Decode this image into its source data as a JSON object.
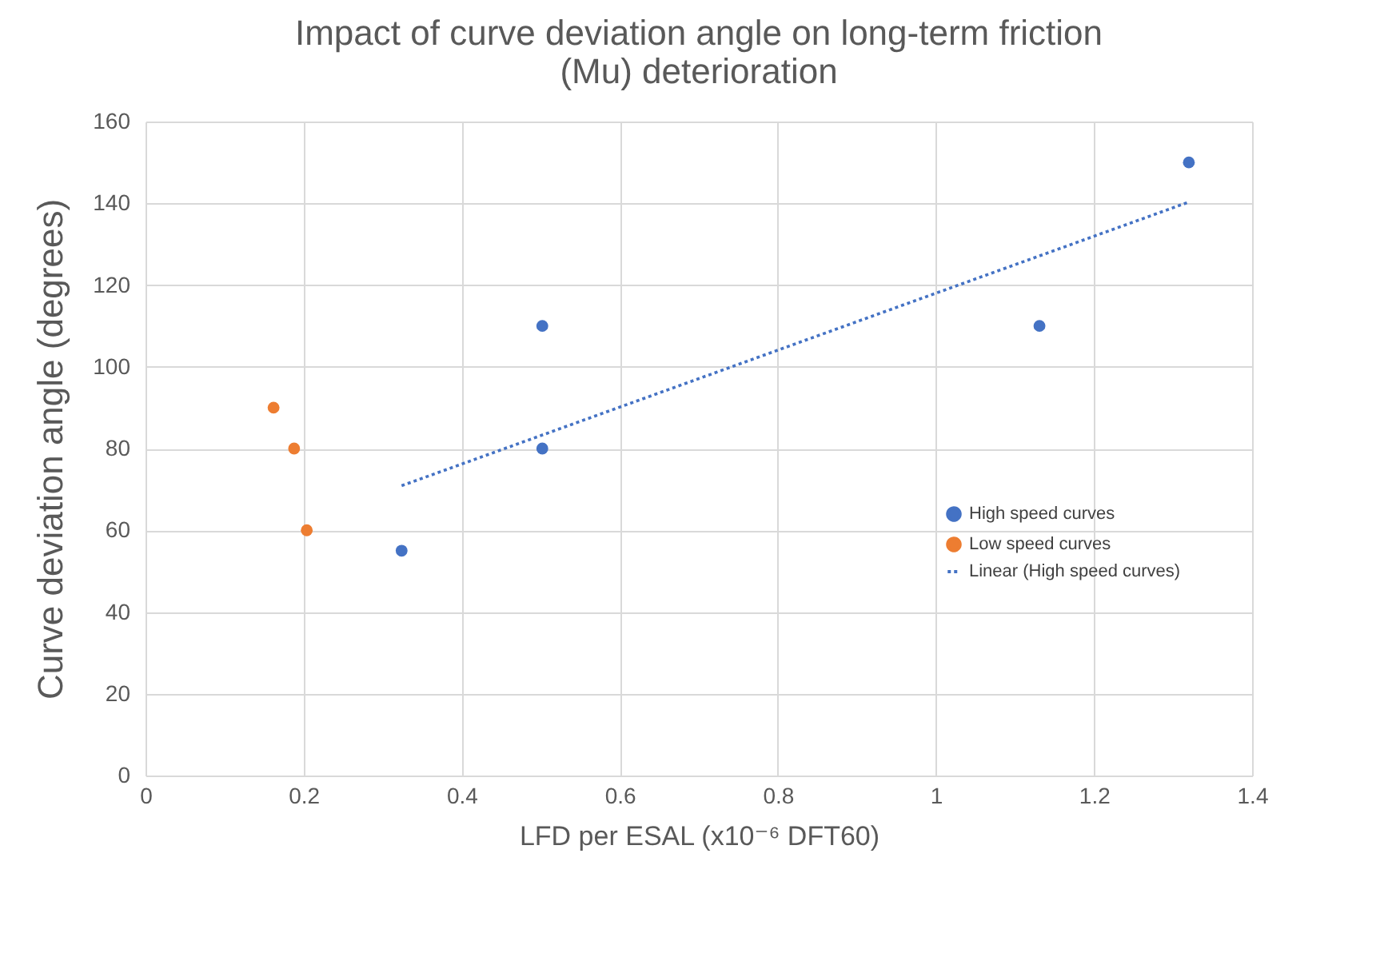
{
  "chart_data": {
    "type": "scatter",
    "title": "Impact of curve deviation angle on long-term friction (Mu) deterioration",
    "xlabel": "LFD per ESAL (x10⁻⁶ DFT60)",
    "ylabel": "Curve deviation angle (degrees)",
    "xlim": [
      0,
      1.4
    ],
    "xticks": [
      0,
      0.2,
      0.4,
      0.6,
      0.8,
      1,
      1.2,
      1.4
    ],
    "ylim": [
      0,
      160
    ],
    "yticks": [
      0,
      20,
      40,
      60,
      80,
      100,
      120,
      140,
      160
    ],
    "grid": true,
    "legend": "right",
    "series": [
      {
        "name": "High speed curves",
        "marker": "circle",
        "color": "#4472c4",
        "x": [
          0.324,
          0.502,
          0.502,
          1.131,
          1.32
        ],
        "values": [
          55,
          110,
          80,
          110,
          150
        ]
      },
      {
        "name": "Low speed curves",
        "marker": "circle",
        "color": "#ed7d31",
        "x": [
          0.162,
          0.188,
          0.204
        ],
        "values": [
          90,
          80,
          60
        ]
      },
      {
        "name": "Linear (High speed curves)",
        "type": "line",
        "line_style": "dotted",
        "marker": "none",
        "color": "#4472c4",
        "x": [
          0.324,
          1.32
        ],
        "values": [
          70.9,
          140.3
        ]
      }
    ]
  }
}
